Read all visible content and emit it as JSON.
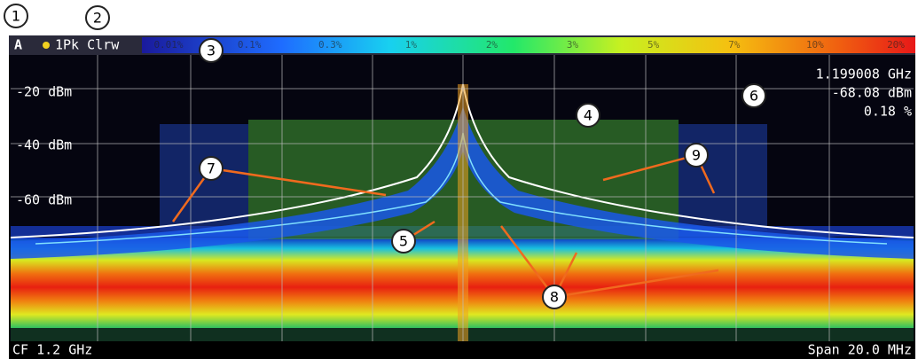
{
  "callouts": [
    "1",
    "2",
    "3",
    "4",
    "5",
    "6",
    "7",
    "8",
    "9"
  ],
  "header": {
    "window": "A",
    "trace": "1Pk Clrw"
  },
  "color_scale": [
    "0.01%",
    "0.1%",
    "0.3%",
    "1%",
    "2%",
    "3%",
    "5%",
    "7%",
    "10%",
    "20%"
  ],
  "y_axis_labels": [
    "-20 dBm",
    "-40 dBm",
    "-60 dBm"
  ],
  "marker": {
    "frequency": "1.199008 GHz",
    "level": "-68.08 dBm",
    "percent": "0.18 %"
  },
  "footer": {
    "center": "CF 1.2 GHz",
    "span": "Span 20.0 MHz"
  }
}
